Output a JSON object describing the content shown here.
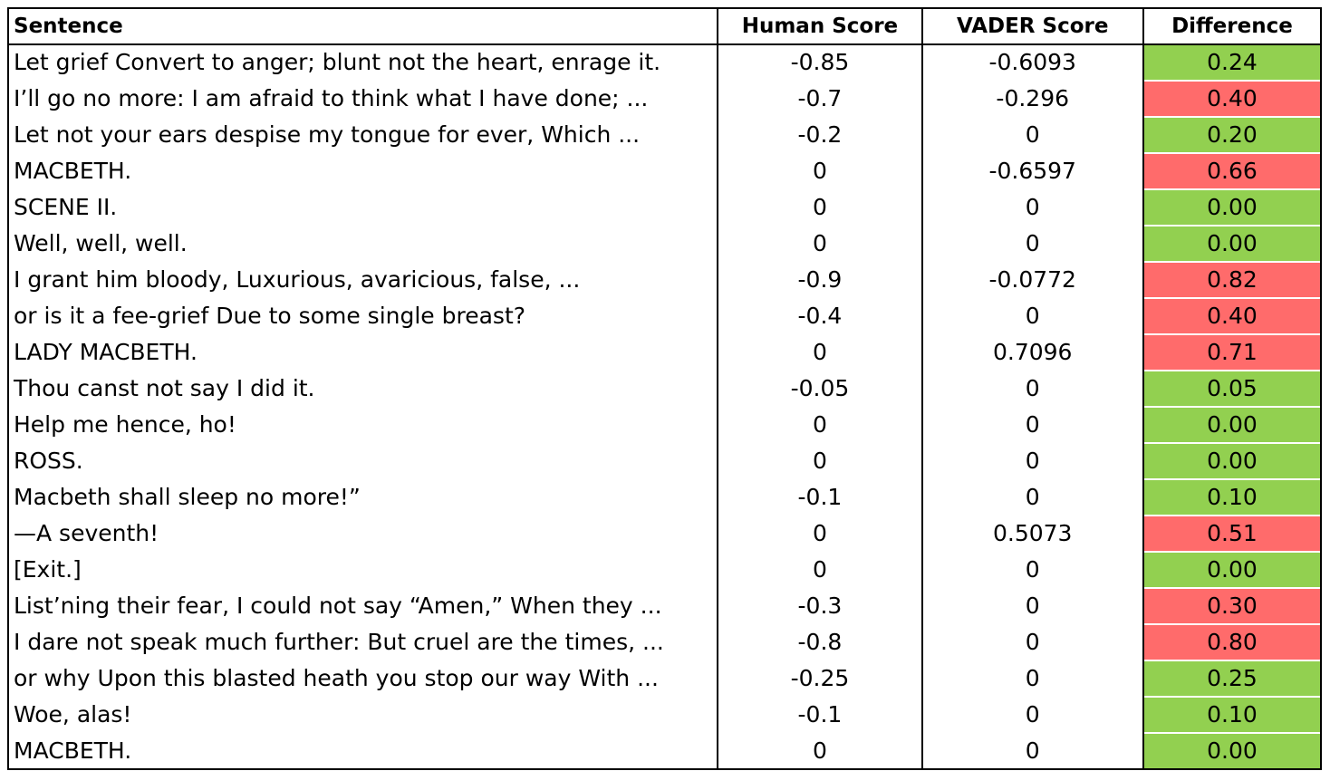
{
  "table": {
    "headers": [
      "Sentence",
      "Human Score",
      "VADER Score",
      "Difference"
    ],
    "colors": {
      "good": "#92d050",
      "bad": "#ff6b6b"
    },
    "rows": [
      {
        "sentence": "Let grief Convert to anger; blunt not the heart, enrage it.",
        "human": "-0.85",
        "vader": "-0.6093",
        "diff": "0.24",
        "status": "good"
      },
      {
        "sentence": "I’ll go no more: I am afraid to think what I have done; ...",
        "human": "-0.7",
        "vader": "-0.296",
        "diff": "0.40",
        "status": "bad"
      },
      {
        "sentence": "Let not your ears despise my tongue for ever, Which ...",
        "human": "-0.2",
        "vader": "0",
        "diff": "0.20",
        "status": "good"
      },
      {
        "sentence": "MACBETH.",
        "human": "0",
        "vader": "-0.6597",
        "diff": "0.66",
        "status": "bad"
      },
      {
        "sentence": "SCENE II.",
        "human": "0",
        "vader": "0",
        "diff": "0.00",
        "status": "good"
      },
      {
        "sentence": "Well, well, well.",
        "human": "0",
        "vader": "0",
        "diff": "0.00",
        "status": "good"
      },
      {
        "sentence": "I grant him bloody, Luxurious, avaricious, false, ...",
        "human": "-0.9",
        "vader": "-0.0772",
        "diff": "0.82",
        "status": "bad"
      },
      {
        "sentence": "or is it a fee-grief Due to some single breast?",
        "human": "-0.4",
        "vader": "0",
        "diff": "0.40",
        "status": "bad"
      },
      {
        "sentence": "LADY MACBETH.",
        "human": "0",
        "vader": "0.7096",
        "diff": "0.71",
        "status": "bad"
      },
      {
        "sentence": "Thou canst not say I did it.",
        "human": "-0.05",
        "vader": "0",
        "diff": "0.05",
        "status": "good"
      },
      {
        "sentence": "Help me hence, ho!",
        "human": "0",
        "vader": "0",
        "diff": "0.00",
        "status": "good"
      },
      {
        "sentence": "ROSS.",
        "human": "0",
        "vader": "0",
        "diff": "0.00",
        "status": "good"
      },
      {
        "sentence": "Macbeth shall sleep no more!”",
        "human": "-0.1",
        "vader": "0",
        "diff": "0.10",
        "status": "good"
      },
      {
        "sentence": "—A seventh!",
        "human": "0",
        "vader": "0.5073",
        "diff": "0.51",
        "status": "bad"
      },
      {
        "sentence": "[Exit.]",
        "human": "0",
        "vader": "0",
        "diff": "0.00",
        "status": "good"
      },
      {
        "sentence": "List’ning their fear, I could not say “Amen,” When they ...",
        "human": "-0.3",
        "vader": "0",
        "diff": "0.30",
        "status": "bad"
      },
      {
        "sentence": "I dare not speak much further: But cruel are the times, ...",
        "human": "-0.8",
        "vader": "0",
        "diff": "0.80",
        "status": "bad"
      },
      {
        "sentence": "or why Upon this blasted heath you stop our way With ...",
        "human": "-0.25",
        "vader": "0",
        "diff": "0.25",
        "status": "good"
      },
      {
        "sentence": "Woe, alas!",
        "human": "-0.1",
        "vader": "0",
        "diff": "0.10",
        "status": "good"
      },
      {
        "sentence": "MACBETH.",
        "human": "0",
        "vader": "0",
        "diff": "0.00",
        "status": "good"
      }
    ]
  }
}
